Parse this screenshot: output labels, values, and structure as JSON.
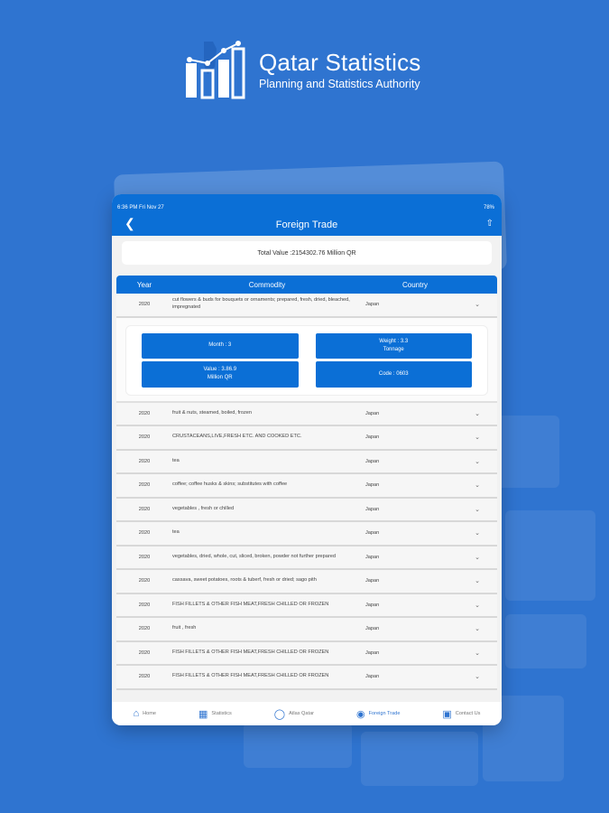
{
  "brand": {
    "title": "Qatar Statistics",
    "subtitle": "Planning and Statistics Authority"
  },
  "status": {
    "time": "6:36 PM  Fri Nov 27",
    "battery": "78%"
  },
  "nav": {
    "title": "Foreign Trade"
  },
  "total": "Total Value :2154302.76 Million QR",
  "headers": {
    "year": "Year",
    "commodity": "Commodity",
    "country": "Country"
  },
  "first_row": {
    "year": "2020",
    "commodity": "cut flowers & buds for bouquets or ornaments; prepared, fresh, dried, bleached, impregnated",
    "country": "Japan"
  },
  "details": {
    "month": "Month : 3",
    "weight": "Weight : 3.3\nTonnage",
    "value": "Value : 3.86.9\nMillion QR",
    "code": "Code : 0603"
  },
  "rows": [
    {
      "year": "2020",
      "commodity": "fruit & nuts, steamed, boiled, frozen",
      "country": "Japan"
    },
    {
      "year": "2020",
      "commodity": "CRUSTACEANS,LIVE,FRESH ETC. AND COOKED ETC.",
      "country": "Japan"
    },
    {
      "year": "2020",
      "commodity": "tea",
      "country": "Japan"
    },
    {
      "year": "2020",
      "commodity": "coffee; coffee husks & skins; substitutes with coffee",
      "country": "Japan"
    },
    {
      "year": "2020",
      "commodity": "vegetables , fresh or chilled",
      "country": "Japan"
    },
    {
      "year": "2020",
      "commodity": "tea",
      "country": "Japan"
    },
    {
      "year": "2020",
      "commodity": "vegetables, dried, whole, cut, sliced, broken, powder not further prepared",
      "country": "Japan"
    },
    {
      "year": "2020",
      "commodity": "cassava, sweet potatoes, roots & tuberf, fresh or dried; sago pith",
      "country": "Japan"
    },
    {
      "year": "2020",
      "commodity": "FISH FILLETS & OTHER FISH MEAT,FRESH CHILLED OR FROZEN",
      "country": "Japan"
    },
    {
      "year": "2020",
      "commodity": "fruit , fresh",
      "country": "Japan"
    },
    {
      "year": "2020",
      "commodity": "FISH FILLETS & OTHER FISH MEAT,FRESH CHILLED OR FROZEN",
      "country": "Japan"
    },
    {
      "year": "2020",
      "commodity": "FISH FILLETS & OTHER FISH MEAT,FRESH CHILLED OR FROZEN",
      "country": "Japan"
    }
  ],
  "tabs": [
    {
      "label": "Home",
      "icon": "home-icon"
    },
    {
      "label": "Statistics",
      "icon": "statistics-icon"
    },
    {
      "label": "Atlas Qatar",
      "icon": "map-icon"
    },
    {
      "label": "Foreign Trade",
      "icon": "globe-icon",
      "active": true
    },
    {
      "label": "Contact Us",
      "icon": "contact-icon"
    }
  ]
}
